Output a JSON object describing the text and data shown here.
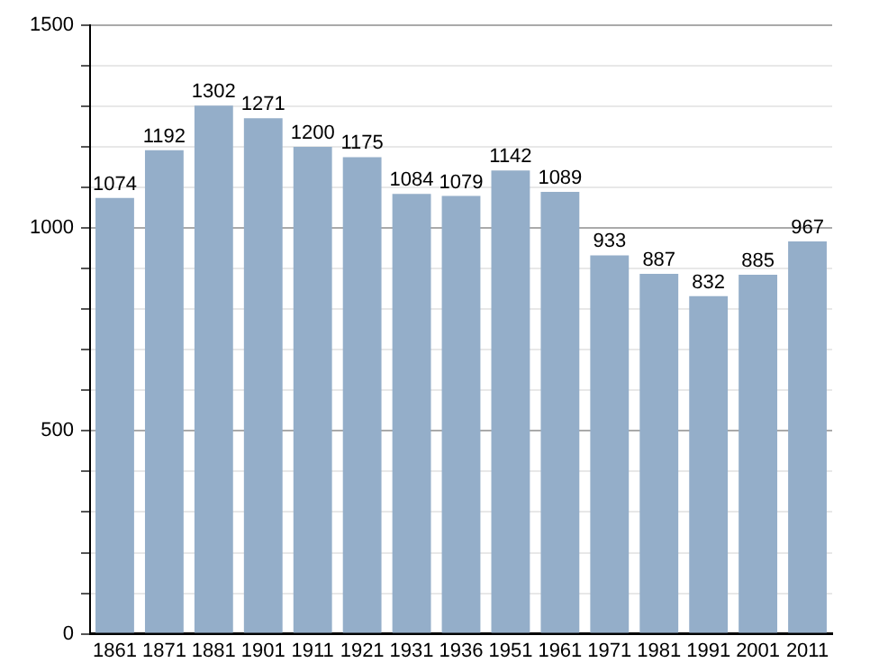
{
  "chart_data": {
    "type": "bar",
    "categories": [
      "1861",
      "1871",
      "1881",
      "1901",
      "1911",
      "1921",
      "1931",
      "1936",
      "1951",
      "1961",
      "1971",
      "1981",
      "1991",
      "2001",
      "2011"
    ],
    "values": [
      1074,
      1192,
      1302,
      1271,
      1200,
      1175,
      1084,
      1079,
      1142,
      1089,
      933,
      887,
      832,
      885,
      967
    ],
    "color": "#94aec9",
    "ylim": [
      0,
      1500
    ],
    "yticks": [
      0,
      {
        "value": 100,
        "label": null
      },
      {
        "value": 200,
        "label": null
      },
      {
        "value": 300,
        "label": null
      },
      {
        "value": 400,
        "label": null
      },
      500,
      {
        "value": 600,
        "label": null
      },
      {
        "value": 700,
        "label": null
      },
      {
        "value": 800,
        "label": null
      },
      {
        "value": 900,
        "label": null
      },
      1000,
      {
        "value": 1100,
        "label": null
      },
      {
        "value": 1200,
        "label": null
      },
      {
        "value": 1300,
        "label": null
      },
      {
        "value": 1400,
        "label": null
      },
      1500
    ],
    "grid": "y",
    "data_labels": true
  }
}
